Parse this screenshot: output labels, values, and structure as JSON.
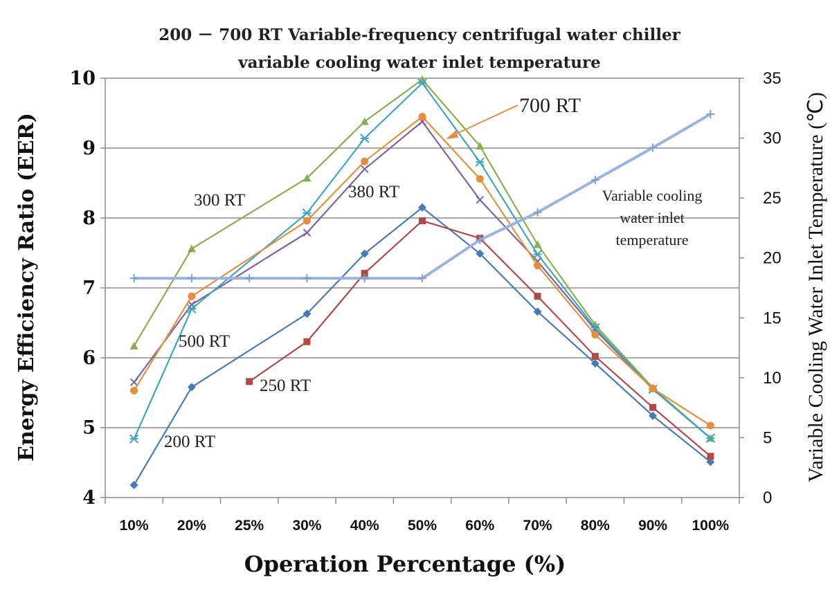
{
  "chart_data": {
    "type": "line",
    "title_line1": "200 － 700 RT Variable-frequency centrifugal water chiller",
    "title_line2": "variable cooling  water inlet temperature",
    "xlabel": "Operation Percentage (%)",
    "ylabel": "Energy Efficiency Ratio (EER)",
    "y2label": "Variable Cooling Water Inlet Temperature (℃)",
    "categories": [
      "10%",
      "20%",
      "25%",
      "30%",
      "40%",
      "50%",
      "60%",
      "70%",
      "80%",
      "90%",
      "100%"
    ],
    "ylim": [
      4,
      10
    ],
    "yticks": [
      "4",
      "5",
      "6",
      "7",
      "8",
      "9",
      "10"
    ],
    "y2lim": [
      0,
      35
    ],
    "y2ticks": [
      "0",
      "5",
      "10",
      "15",
      "20",
      "25",
      "30",
      "35"
    ],
    "grid": true,
    "series": [
      {
        "name": "200 RT",
        "color": "#4a7ab4",
        "marker": "diamond",
        "axis": "left",
        "values": [
          4.18,
          5.58,
          null,
          6.63,
          7.49,
          8.15,
          7.49,
          6.66,
          5.92,
          5.17,
          4.51
        ]
      },
      {
        "name": "250 RT",
        "color": "#b04a48",
        "marker": "square",
        "axis": "left",
        "values": [
          null,
          null,
          5.66,
          6.23,
          7.21,
          7.96,
          7.71,
          6.88,
          6.02,
          5.29,
          4.59
        ]
      },
      {
        "name": "300 RT",
        "color": "#8aad4e",
        "marker": "triangle",
        "axis": "left",
        "values": [
          6.17,
          7.56,
          null,
          8.57,
          9.38,
          9.98,
          9.03,
          7.62,
          6.47,
          5.57,
          4.85
        ]
      },
      {
        "name": "380 RT",
        "color": "#7d62a0",
        "marker": "x",
        "axis": "left",
        "values": [
          5.65,
          6.76,
          null,
          7.79,
          8.7,
          9.38,
          8.26,
          7.38,
          6.4,
          5.55,
          4.85
        ]
      },
      {
        "name": "500 RT",
        "color": "#3fa6bd",
        "marker": "cross",
        "axis": "left",
        "values": [
          4.84,
          6.7,
          null,
          8.07,
          9.14,
          9.93,
          8.8,
          7.48,
          6.43,
          5.55,
          4.85
        ]
      },
      {
        "name": "700 RT",
        "color": "#e38f3f",
        "marker": "circle",
        "axis": "left",
        "values": [
          5.53,
          6.88,
          null,
          7.96,
          8.81,
          9.45,
          8.56,
          7.32,
          6.33,
          5.56,
          5.03
        ]
      },
      {
        "name": "Variable cooling water inlet temperature",
        "color": "#9ab3dc",
        "marker": "plus",
        "axis": "right",
        "values": [
          18.3,
          18.3,
          18.3,
          18.3,
          18.3,
          18.3,
          21.5,
          23.8,
          26.5,
          29.2,
          32.0
        ]
      }
    ],
    "annotations": {
      "a200": "200 RT",
      "a250": "250 RT",
      "a300": "300 RT",
      "a380": "380 RT",
      "a500": "500 RT",
      "a700": "700 RT",
      "temp_line1": "Variable cooling",
      "temp_line2": "water inlet",
      "temp_line3": "temperature"
    }
  }
}
